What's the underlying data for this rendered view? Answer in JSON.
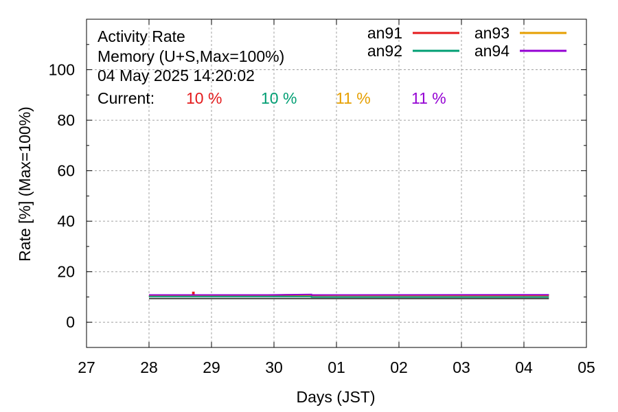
{
  "chart_data": {
    "type": "line",
    "title_lines": [
      "Activity Rate",
      "Memory (U+S,Max=100%)",
      "04 May 2025 14:20:02"
    ],
    "current_label": "Current:",
    "xlabel": "Days (JST)",
    "ylabel": "Rate [%]  (Max=100%)",
    "xlim": [
      0,
      8
    ],
    "ylim": [
      -10,
      120
    ],
    "yticks": [
      0,
      20,
      40,
      60,
      80,
      100
    ],
    "xtick_labels": [
      "27",
      "28",
      "29",
      "30",
      "01",
      "02",
      "03",
      "04",
      "05"
    ],
    "grid": true,
    "legend_position": "top-right",
    "series": [
      {
        "name": "an91",
        "color": "#e41a1c",
        "current": "10 %",
        "x": [
          1.0,
          1.7,
          1.7,
          1.72,
          1.72,
          7.4
        ],
        "y": [
          10.6,
          10.6,
          11.8,
          11.8,
          10.6,
          10.6
        ]
      },
      {
        "name": "an92",
        "color": "#009e73",
        "current": "10 %",
        "x": [
          1.0,
          3.6,
          3.6,
          7.4
        ],
        "y": [
          10.2,
          10.2,
          10.0,
          10.0
        ]
      },
      {
        "name": "an93",
        "color": "#e69f00",
        "current": "11 %",
        "x": [
          1.0,
          2.9,
          3.2,
          4.0,
          7.4
        ],
        "y": [
          10.7,
          10.7,
          10.9,
          10.7,
          10.8
        ]
      },
      {
        "name": "an94",
        "color": "#9400d3",
        "current": "11 %",
        "x": [
          1.0,
          2.9,
          3.6,
          3.6,
          7.4
        ],
        "y": [
          10.8,
          10.8,
          11.0,
          10.8,
          10.9
        ]
      }
    ],
    "baseline": {
      "color": "#404040",
      "x": [
        1.0,
        7.4
      ],
      "y": [
        9.4,
        9.4
      ]
    }
  }
}
